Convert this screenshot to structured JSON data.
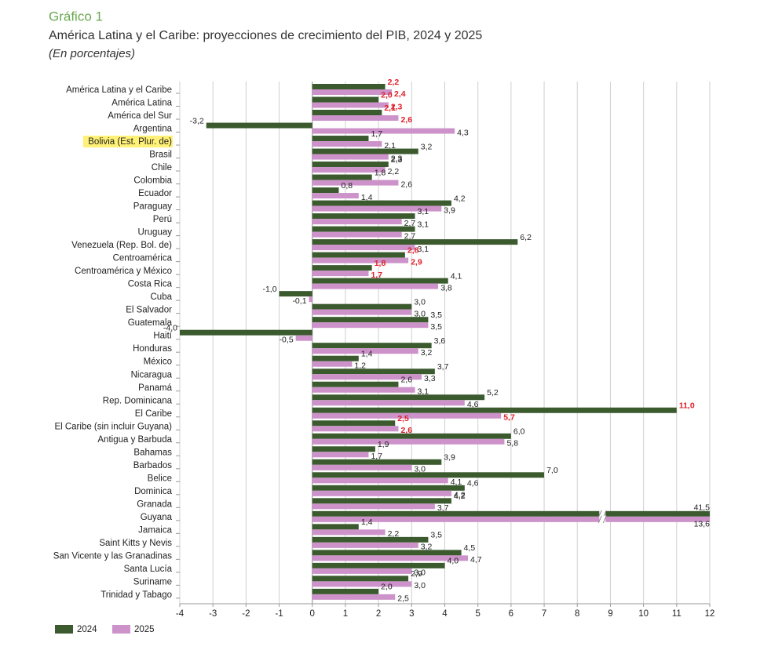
{
  "chart_data": {
    "type": "hbar",
    "label": "Gráfico 1",
    "title": "América Latina y el Caribe: proyecciones de crecimiento del PIB, 2024 y 2025",
    "subtitle": "(En porcentajes)",
    "categories": [
      "América Latina y el Caribe",
      "América Latina",
      "América del Sur",
      "Argentina",
      "Bolivia (Est. Plur. de)",
      "Brasil",
      "Chile",
      "Colombia",
      "Ecuador",
      "Paraguay",
      "Perú",
      "Uruguay",
      "Venezuela (Rep. Bol. de)",
      "Centroamérica",
      "Centroamérica y México",
      "Costa Rica",
      "Cuba",
      "El Salvador",
      "Guatemala",
      "Haití",
      "Honduras",
      "México",
      "Nicaragua",
      "Panamá",
      "Rep. Dominicana",
      "El Caribe",
      "El Caribe (sin incluir Guyana)",
      "Antigua y Barbuda",
      "Bahamas",
      "Barbados",
      "Belice",
      "Dominica",
      "Granada",
      "Guyana",
      "Jamaica",
      "Saint Kitts y Nevis",
      "San Vicente y las Granadinas",
      "Santa Lucía",
      "Suriname",
      "Trinidad y Tabago"
    ],
    "series": [
      {
        "name": "2024",
        "color": "#3b5a2e",
        "values": [
          2.2,
          2.0,
          2.1,
          -3.2,
          1.7,
          3.2,
          2.3,
          1.8,
          0.8,
          4.2,
          3.1,
          3.1,
          6.2,
          2.8,
          1.8,
          4.1,
          -1.0,
          3.0,
          3.5,
          -4.0,
          3.6,
          1.4,
          3.7,
          2.6,
          5.2,
          11.0,
          2.5,
          6.0,
          1.9,
          3.9,
          7.0,
          4.6,
          4.2,
          41.5,
          1.4,
          3.5,
          4.5,
          4.0,
          2.9,
          2.0
        ],
        "value_labels": [
          "2,2",
          "2,0",
          "2,1",
          "-3,2",
          "1,7",
          "3,2",
          "2,3",
          "1,8",
          "0,8",
          "4,2",
          "3,1",
          "3,1",
          "6,2",
          "2,8",
          "1,8",
          "4,1",
          "-1,0",
          "3,0",
          "3,5",
          "-4,0",
          "3,6",
          "1,4",
          "3,7",
          "2,6",
          "5,2",
          "11,0",
          "2,5",
          "6,0",
          "1,9",
          "3,9",
          "7,0",
          "4,6",
          "4,2",
          "41,5",
          "1,4",
          "3,5",
          "4,5",
          "4,0",
          "2,9",
          "2,0"
        ]
      },
      {
        "name": "2025",
        "color": "#cc92c9",
        "values": [
          2.4,
          2.3,
          2.6,
          4.3,
          2.1,
          2.3,
          2.2,
          2.6,
          1.4,
          3.9,
          2.7,
          2.7,
          3.1,
          2.9,
          1.7,
          3.8,
          -0.1,
          3.0,
          3.5,
          -0.5,
          3.2,
          1.2,
          3.3,
          3.1,
          4.6,
          5.7,
          2.6,
          5.8,
          1.7,
          3.0,
          4.1,
          4.2,
          3.7,
          13.6,
          2.2,
          3.2,
          4.7,
          3.0,
          3.0,
          2.5
        ],
        "value_labels": [
          "2,4",
          "2,3",
          "2,6",
          "4,3",
          "2,1",
          "2,3",
          "2,2",
          "2,6",
          "1,4",
          "3,9",
          "2,7",
          "2,7",
          "3,1",
          "2,9",
          "1,7",
          "3,8",
          "-0,1",
          "3,0",
          "3,5",
          "-0,5",
          "3,2",
          "1,2",
          "3,3",
          "3,1",
          "4,6",
          "5,7",
          "2,6",
          "5,8",
          "1,7",
          "3,0",
          "4,1",
          "4,2",
          "3,7",
          "13,6",
          "2,2",
          "3,2",
          "4,7",
          "3,0",
          "3,0",
          "2,5"
        ]
      }
    ],
    "emphasis_indices": [
      0,
      1,
      2,
      13,
      14,
      25,
      26
    ],
    "highlight_indices": [
      4
    ],
    "xlim": [
      -4,
      12
    ],
    "xticks": [
      -4,
      -3,
      -2,
      -1,
      0,
      1,
      2,
      3,
      4,
      5,
      6,
      7,
      8,
      9,
      10,
      11,
      12
    ],
    "grid": true,
    "legend": "bottom-left"
  }
}
